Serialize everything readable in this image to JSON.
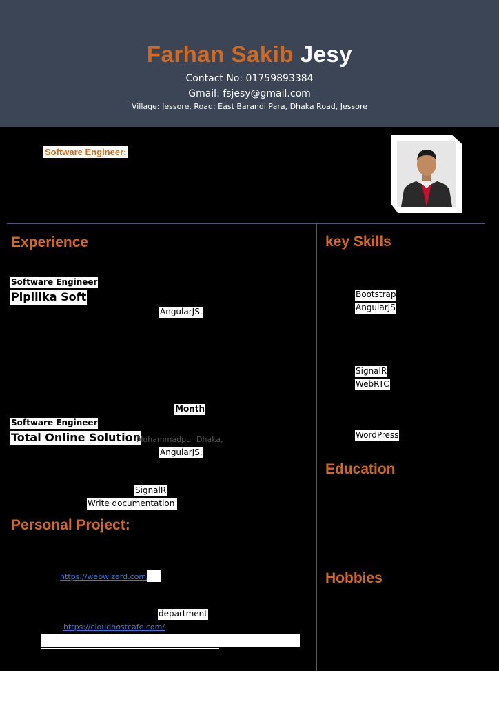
{
  "header": {
    "first_name": "Farhan Sakib",
    "last_name": "Jesy",
    "contact": "Contact No: 01759893384",
    "email": "Gmail: fsjesy@gmail.com",
    "address": "Village: Jessore, Road: East Barandi Para, Dhaka Road, Jessore"
  },
  "profile": {
    "title": "Software Engineer:"
  },
  "experience": {
    "heading": "Experience",
    "jobs": [
      {
        "role": "Software Engineer",
        "company": "Pipilika Soft",
        "tech": "AngularJS."
      },
      {
        "duration": "Month",
        "role": "Software Engineer",
        "company": "Total Online Solution",
        "location": "Mohammadpur Dhaka,",
        "tech": "AngularJS.",
        "tech2": "SignalR",
        "task": "Write documentation"
      }
    ]
  },
  "projects": {
    "heading": "Personal Project:",
    "link1": "https://webwizerd.com/",
    "department": "department",
    "link2": "https://cloudhostcafe.com/"
  },
  "skills": {
    "heading": "key Skills",
    "items": [
      "Bootstrap",
      "AngularJS",
      "SignalR",
      "WebRTC",
      "WordPress"
    ]
  },
  "education": {
    "heading": "Education"
  },
  "hobbies": {
    "heading": "Hobbies"
  },
  "colors": {
    "header_bg": "#3b4556",
    "accent": "#d2691e",
    "body_bg": "#000000"
  }
}
